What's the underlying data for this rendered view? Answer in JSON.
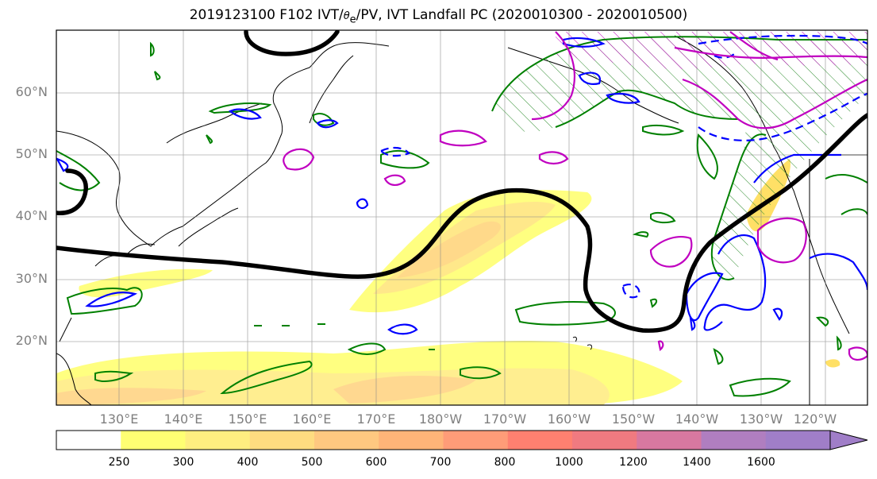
{
  "title_main": "2019123100 F102 IVT/",
  "title_theta": "θ",
  "title_sub": "e",
  "title_rest": "/PV, IVT Landfall PC (2020010300 - 2020010500)",
  "lat_labels": [
    "60°N",
    "50°N",
    "40°N",
    "30°N",
    "20°N"
  ],
  "lon_labels": [
    "130°E",
    "140°E",
    "150°E",
    "160°E",
    "170°E",
    "180°W",
    "170°W",
    "160°W",
    "150°W",
    "140°W",
    "130°W",
    "120°W"
  ],
  "colorbar": {
    "ticks": [
      "250",
      "300",
      "400",
      "500",
      "600",
      "700",
      "800",
      "1000",
      "1200",
      "1400",
      "1600"
    ],
    "colors": [
      "#ffffff",
      "#ffff73",
      "#ffee80",
      "#ffdc80",
      "#ffc880",
      "#ffb478",
      "#ff9c78",
      "#ff8070",
      "#f07a80",
      "#d878a0",
      "#b07ec0",
      "#a07ec8"
    ]
  },
  "colors": {
    "ivt_landfall_pc": "#000000",
    "theta_e": "#008000",
    "pv_positive": "#0000ff",
    "pv_secondary": "#c000c0"
  }
}
